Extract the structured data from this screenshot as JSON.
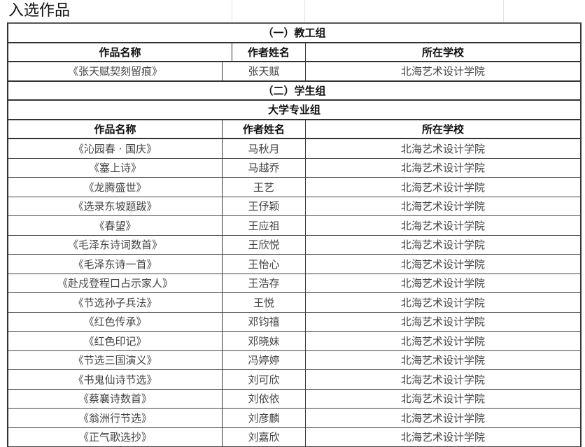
{
  "sheet_title": "入选作品",
  "staff_group": {
    "heading": "（一）教工组",
    "columns": [
      "作品名称",
      "作者姓名",
      "所在学校"
    ],
    "rows": [
      {
        "work": "《张天赋契刻留痕》",
        "author": "张天赋",
        "school": "北海艺术设计学院"
      }
    ]
  },
  "student_group": {
    "heading": "（二）学生组",
    "subheading": "大学专业组",
    "columns": [
      "作品名称",
      "作者姓名",
      "所在学校"
    ],
    "rows": [
      {
        "work": "《沁园春 · 国庆》",
        "author": "马秋月",
        "school": "北海艺术设计学院"
      },
      {
        "work": "《塞上诗》",
        "author": "马越乔",
        "school": "北海艺术设计学院"
      },
      {
        "work": "《龙腾盛世》",
        "author": "王艺",
        "school": "北海艺术设计学院"
      },
      {
        "work": "《选录东坡题跋》",
        "author": "王伃颖",
        "school": "北海艺术设计学院"
      },
      {
        "work": "《春望》",
        "author": "王应祖",
        "school": "北海艺术设计学院"
      },
      {
        "work": "《毛泽东诗词数首》",
        "author": "王欣悦",
        "school": "北海艺术设计学院"
      },
      {
        "work": "《毛泽东诗一首》",
        "author": "王怡心",
        "school": "北海艺术设计学院"
      },
      {
        "work": "《赴戍登程口占示家人》",
        "author": "王浩存",
        "school": "北海艺术设计学院"
      },
      {
        "work": "《节选孙子兵法》",
        "author": "王悦",
        "school": "北海艺术设计学院"
      },
      {
        "work": "《红色传承》",
        "author": "邓钧禧",
        "school": "北海艺术设计学院"
      },
      {
        "work": "《红色印记》",
        "author": "邓晓妹",
        "school": "北海艺术设计学院"
      },
      {
        "work": "《节选三国演义》",
        "author": "冯婷婷",
        "school": "北海艺术设计学院"
      },
      {
        "work": "《书鬼仙诗节选》",
        "author": "刘可欣",
        "school": "北海艺术设计学院"
      },
      {
        "work": "《蔡襄诗数首》",
        "author": "刘依依",
        "school": "北海艺术设计学院"
      },
      {
        "work": "《翁洲行节选》",
        "author": "刘彦麟",
        "school": "北海艺术设计学院"
      },
      {
        "work": "《正气歌选抄》",
        "author": "刘嘉欣",
        "school": "北海艺术设计学院"
      }
    ]
  }
}
